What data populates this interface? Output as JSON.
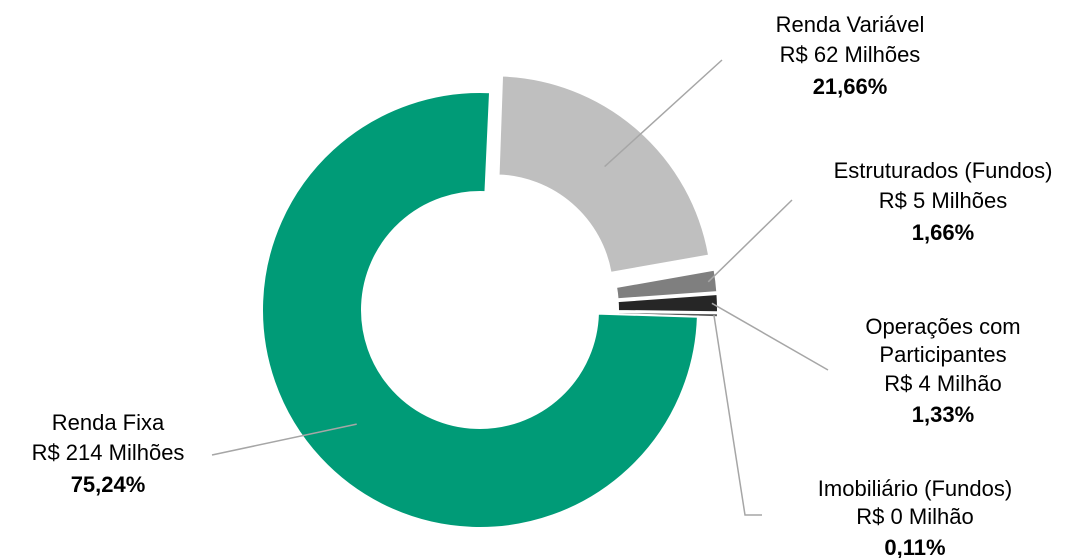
{
  "chart_data": {
    "type": "pie",
    "style": "donut-exploded",
    "series": [
      {
        "name": "Renda Variável",
        "amount_label": "R$ 62 Milhões",
        "percent_label": "21,66%",
        "value": 21.66,
        "color": "#bfbfbf"
      },
      {
        "name": "Estruturados (Fundos)",
        "amount_label": "R$ 5 Milhões",
        "percent_label": "1,66%",
        "value": 1.66,
        "color": "#7f7f7f"
      },
      {
        "name": "Operações com Participantes",
        "name_lines": [
          "Operações com",
          "Participantes"
        ],
        "amount_label": "R$ 4 Milhão",
        "percent_label": "1,33%",
        "value": 1.33,
        "color": "#262626"
      },
      {
        "name": "Imobiliário (Fundos)",
        "amount_label": "R$ 0 Milhão",
        "percent_label": "0,11%",
        "value": 0.11,
        "color": "#595959"
      },
      {
        "name": "Renda Fixa",
        "amount_label": "R$ 214 Milhões",
        "percent_label": "75,24%",
        "value": 75.24,
        "color": "#009b77"
      }
    ]
  }
}
